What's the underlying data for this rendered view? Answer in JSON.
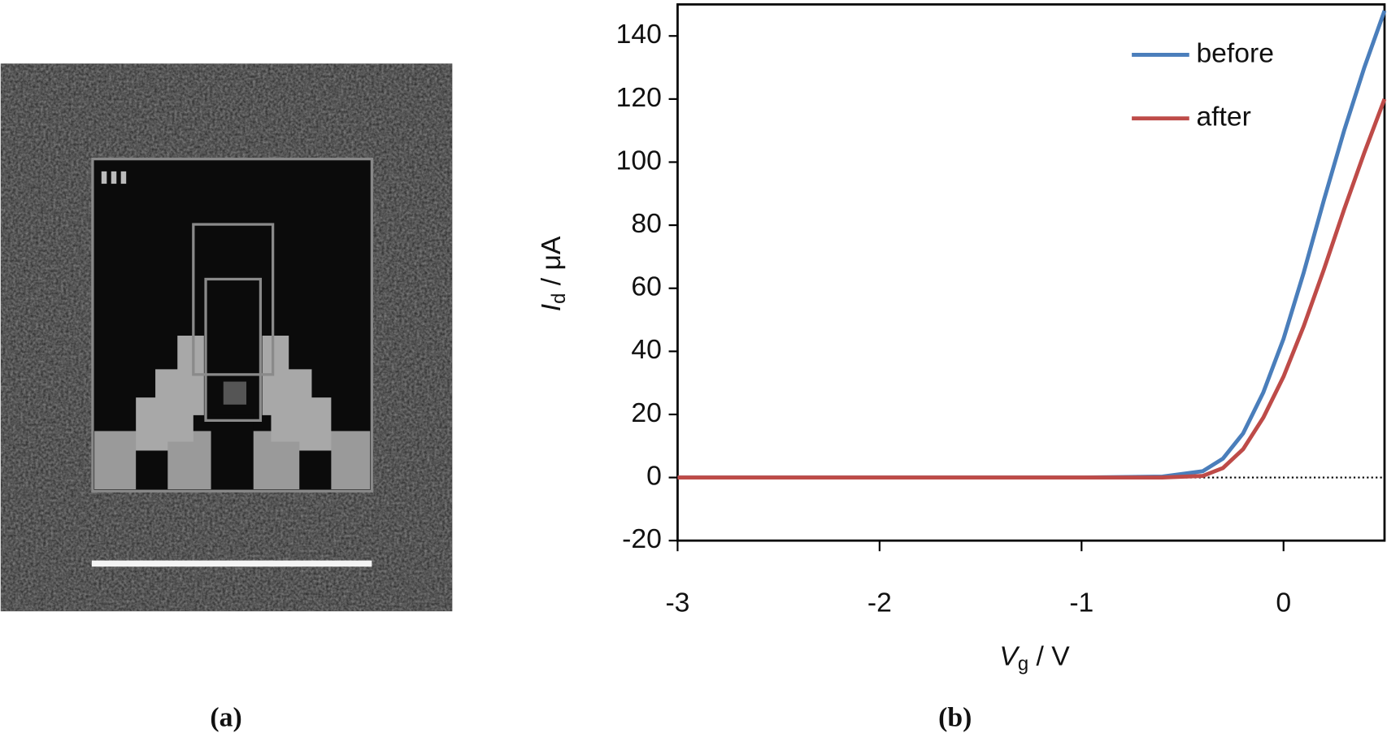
{
  "panels": {
    "a": "(a)",
    "b": "(b)"
  },
  "chart_data": {
    "type": "line",
    "xlabel": {
      "main": "V",
      "sub": "g",
      "unit": " / V"
    },
    "ylabel": {
      "main": "I",
      "sub": "d",
      "unit": " / μA"
    },
    "x": [
      -3,
      -1,
      -0.6,
      -0.4,
      -0.3,
      -0.2,
      -0.1,
      0,
      0.1,
      0.2,
      0.3,
      0.4,
      0.5
    ],
    "series": [
      {
        "name": "before",
        "color": "#4a7ebb",
        "values": [
          0,
          0,
          0.3,
          2,
          6,
          14,
          27,
          44,
          65,
          88,
          110,
          130,
          148
        ]
      },
      {
        "name": "after",
        "color": "#be4b48",
        "values": [
          0,
          0,
          0,
          0.5,
          3,
          9,
          19,
          32,
          48,
          66,
          85,
          103,
          120
        ]
      }
    ],
    "xlim": [
      -3,
      0.5
    ],
    "xticks": [
      -3,
      -2,
      -1,
      0
    ],
    "ylim": [
      -20,
      150
    ],
    "yticks": [
      -20,
      0,
      20,
      40,
      60,
      80,
      100,
      120,
      140
    ],
    "zero_line": true,
    "legend": "upper right"
  }
}
